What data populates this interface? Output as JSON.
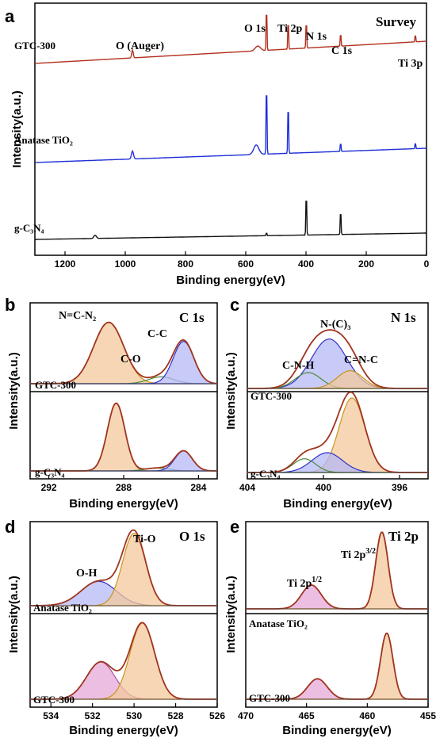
{
  "colors": {
    "envelope": "#a0341e",
    "raw": "#1a1a1a",
    "blue_fill": "#b6b8f5",
    "blue_line": "#3030c8",
    "orange_fill": "#f3c89c",
    "orange_line": "#c8951e",
    "pink_fill": "#e6a8d8",
    "pink_line": "#b050a0",
    "green_line": "#4a8c3a",
    "survey_red": "#b2301e",
    "survey_blue": "#1f2fd6",
    "survey_black": "#111111"
  },
  "chart_data": [
    {
      "panel": "a",
      "type": "line",
      "title": "Survey",
      "xlabel": "Binding energy(eV)",
      "ylabel": "Intensity(a.u.)",
      "xlim": [
        1300,
        0
      ],
      "xticks": [
        1200,
        1000,
        800,
        600,
        400,
        200,
        0
      ],
      "series": [
        {
          "name": "GTC-300",
          "color": "#b2301e"
        },
        {
          "name": "Anatase TiO₂",
          "color": "#1f2fd6"
        },
        {
          "name": "g-C₃N₄",
          "color": "#111111"
        }
      ],
      "peak_labels": [
        "O (Auger)",
        "O 1s",
        "Ti 2p",
        "N 1s",
        "C 1s",
        "Ti 3p"
      ],
      "peaks_ev": [
        976,
        531,
        459,
        399,
        285,
        37
      ]
    },
    {
      "panel": "b",
      "type": "area",
      "title": "C 1s",
      "xlabel": "Binding energy(eV)",
      "ylabel": "Intensity(a.u.)",
      "xlim": [
        293,
        283
      ],
      "xticks": [
        292,
        288,
        284
      ],
      "series": [
        {
          "name": "GTC-300",
          "peaks": [
            {
              "label": "N=C-N₂",
              "center": 288.8,
              "height": 0.9,
              "fwhm": 1.9,
              "fill": "orange"
            },
            {
              "label": "C-O",
              "center": 286.0,
              "height": 0.1,
              "fwhm": 1.6,
              "fill": "green"
            },
            {
              "label": "C-C",
              "center": 284.8,
              "height": 0.62,
              "fwhm": 1.3,
              "fill": "blue"
            }
          ]
        },
        {
          "name": "g-C₃N₄",
          "peaks": [
            {
              "label": "",
              "center": 288.4,
              "height": 0.95,
              "fwhm": 1.1,
              "fill": "orange"
            },
            {
              "label": "",
              "center": 286.2,
              "height": 0.04,
              "fwhm": 1.5,
              "fill": "green"
            },
            {
              "label": "",
              "center": 284.8,
              "height": 0.28,
              "fwhm": 1.1,
              "fill": "blue"
            }
          ]
        }
      ]
    },
    {
      "panel": "c",
      "type": "area",
      "title": "N 1s",
      "xlabel": "Binding energy(eV)",
      "ylabel": "Intensity(a.u.)",
      "xlim": [
        404,
        394.5
      ],
      "xticks": [
        404,
        400,
        396
      ],
      "series": [
        {
          "name": "GTC-300",
          "peaks": [
            {
              "label": "N-(C)₃",
              "center": 399.7,
              "height": 0.78,
              "fwhm": 2.2,
              "fill": "blue"
            },
            {
              "label": "C-N-H",
              "center": 400.8,
              "height": 0.25,
              "fwhm": 1.6,
              "fill": "green"
            },
            {
              "label": "C=N-C",
              "center": 398.6,
              "height": 0.28,
              "fwhm": 1.6,
              "fill": "orange"
            }
          ]
        },
        {
          "name": "g-C₃N₄",
          "peaks": [
            {
              "label": "",
              "center": 398.5,
              "height": 0.98,
              "fwhm": 1.6,
              "fill": "orange"
            },
            {
              "label": "",
              "center": 399.8,
              "height": 0.26,
              "fwhm": 1.9,
              "fill": "blue"
            },
            {
              "label": "",
              "center": 401.0,
              "height": 0.18,
              "fwhm": 1.4,
              "fill": "green"
            }
          ]
        }
      ]
    },
    {
      "panel": "d",
      "type": "area",
      "title": "O 1s",
      "xlabel": "Binding energy(eV)",
      "ylabel": "Intensity(a.u.)",
      "xlim": [
        535,
        526
      ],
      "xticks": [
        534,
        532,
        530,
        528,
        526
      ],
      "series": [
        {
          "name": "Anatase TiO₂",
          "peaks": [
            {
              "label": "O-H",
              "center": 531.7,
              "height": 0.32,
              "fwhm": 2.0,
              "fill": "blue"
            },
            {
              "label": "Ti-O",
              "center": 530.0,
              "height": 0.95,
              "fwhm": 1.3,
              "fill": "orange"
            }
          ]
        },
        {
          "name": "GTC-300",
          "peaks": [
            {
              "label": "",
              "center": 531.6,
              "height": 0.48,
              "fwhm": 1.6,
              "fill": "pink"
            },
            {
              "label": "",
              "center": 529.6,
              "height": 0.98,
              "fwhm": 1.4,
              "fill": "orange"
            }
          ]
        }
      ]
    },
    {
      "panel": "e",
      "type": "area",
      "title": "Ti 2p",
      "xlabel": "Binding energy(eV)",
      "ylabel": "Intensity(a.u.)",
      "xlim": [
        470,
        455
      ],
      "xticks": [
        470,
        465,
        460,
        455
      ],
      "series": [
        {
          "name": "Anatase TiO₂",
          "peaks": [
            {
              "label": "Ti 2p1/2",
              "center": 464.6,
              "height": 0.3,
              "fwhm": 1.9,
              "fill": "pink"
            },
            {
              "label": "Ti 2p3/2",
              "center": 458.8,
              "height": 0.97,
              "fwhm": 1.2,
              "fill": "orange"
            }
          ]
        },
        {
          "name": "GTC-300",
          "peaks": [
            {
              "label": "",
              "center": 464.1,
              "height": 0.3,
              "fwhm": 1.9,
              "fill": "pink"
            },
            {
              "label": "",
              "center": 458.4,
              "height": 0.97,
              "fwhm": 1.2,
              "fill": "orange"
            }
          ]
        }
      ]
    }
  ],
  "panel_letters": [
    "a",
    "b",
    "c",
    "d",
    "e"
  ]
}
